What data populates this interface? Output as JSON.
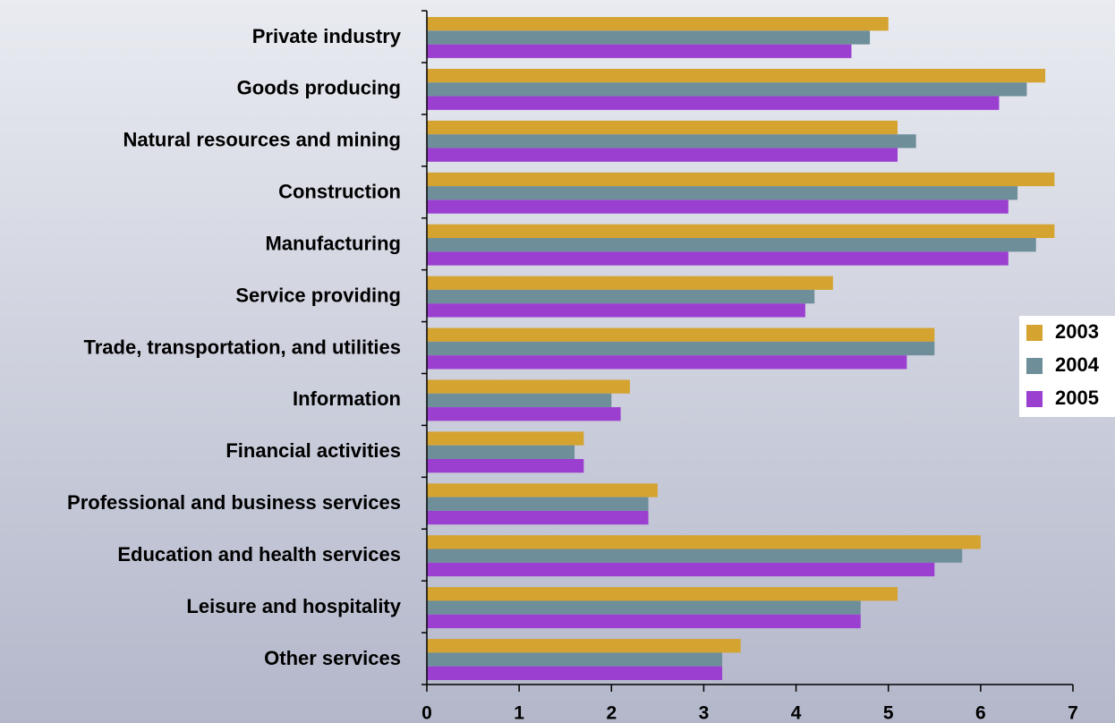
{
  "chart_data": {
    "type": "bar",
    "orientation": "horizontal",
    "categories": [
      "Private industry",
      "Goods producing",
      "Natural resources and mining",
      "Construction",
      "Manufacturing",
      "Service providing",
      "Trade, transportation, and utilities",
      "Information",
      "Financial activities",
      "Professional and business services",
      "Education and health services",
      "Leisure and hospitality",
      "Other services"
    ],
    "series": [
      {
        "name": "2003",
        "color": "#d4a330",
        "values": [
          5.0,
          6.7,
          5.1,
          6.8,
          6.8,
          4.4,
          5.5,
          2.2,
          1.7,
          2.5,
          6.0,
          5.1,
          3.4
        ]
      },
      {
        "name": "2004",
        "color": "#6e8e9a",
        "values": [
          4.8,
          6.5,
          5.3,
          6.4,
          6.6,
          4.2,
          5.5,
          2.0,
          1.6,
          2.4,
          5.8,
          4.7,
          3.2
        ]
      },
      {
        "name": "2005",
        "color": "#9b3fd0",
        "values": [
          4.6,
          6.2,
          5.1,
          6.3,
          6.3,
          4.1,
          5.2,
          2.1,
          1.7,
          2.4,
          5.5,
          4.7,
          3.2
        ]
      }
    ],
    "xlim": [
      0,
      7
    ],
    "xticks": [
      0,
      1,
      2,
      3,
      4,
      5,
      6,
      7
    ],
    "legend": "right"
  }
}
